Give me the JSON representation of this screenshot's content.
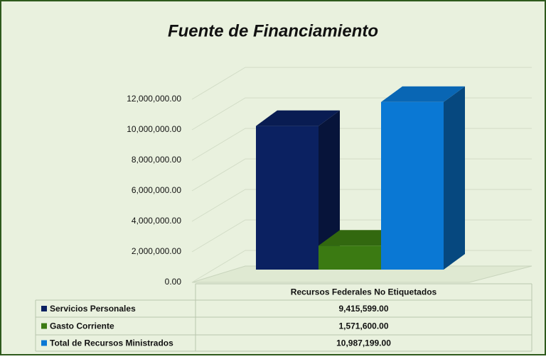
{
  "chart_data": {
    "type": "bar3d",
    "title": "Fuente de Financiamiento",
    "categories": [
      "Recursos Federales No Etiquetados"
    ],
    "series": [
      {
        "name": "Servicios Personales",
        "color": "#0b2161",
        "values": [
          9415599
        ],
        "value_labels": [
          "9,415,599.00"
        ]
      },
      {
        "name": "Gasto Corriente",
        "color": "#3b7a12",
        "values": [
          1571600
        ],
        "value_labels": [
          "1,571,600.00"
        ]
      },
      {
        "name": "Total de Recursos Ministrados",
        "color": "#0a78d4",
        "values": [
          10987199
        ],
        "value_labels": [
          "10,987,199.00"
        ]
      }
    ],
    "ylim": [
      0,
      12000000
    ],
    "yticks": [
      {
        "value": 0,
        "label": "0.00"
      },
      {
        "value": 2000000,
        "label": "2,000,000.00"
      },
      {
        "value": 4000000,
        "label": "4,000,000.00"
      },
      {
        "value": 6000000,
        "label": "6,000,000.00"
      },
      {
        "value": 8000000,
        "label": "8,000,000.00"
      },
      {
        "value": 10000000,
        "label": "10,000,000.00"
      },
      {
        "value": 12000000,
        "label": "12,000,000.00"
      }
    ],
    "grid": true
  }
}
